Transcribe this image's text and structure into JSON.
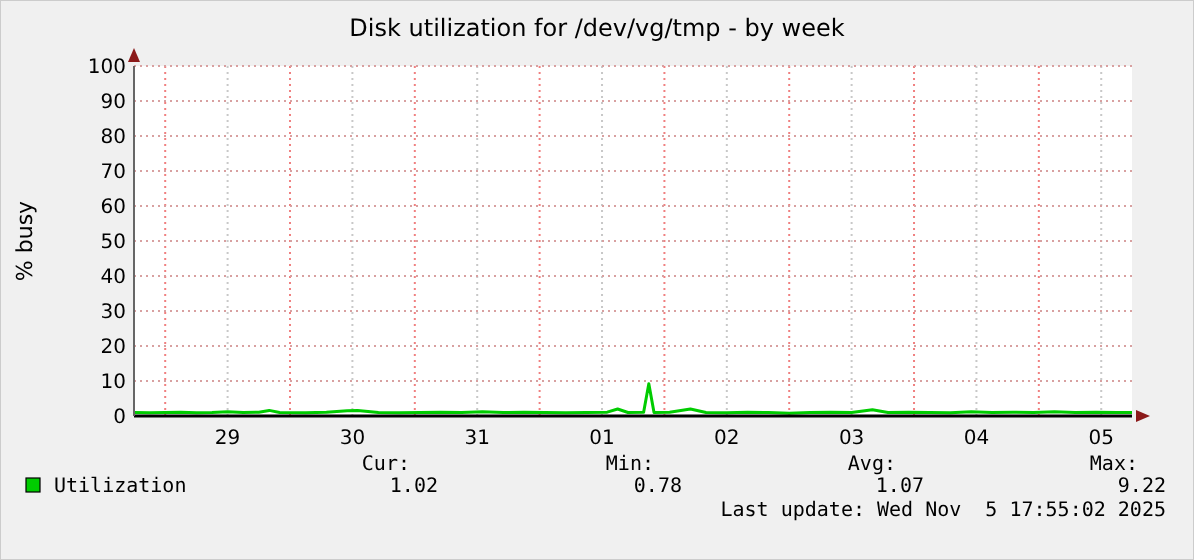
{
  "chart_data": {
    "type": "line",
    "title": "Disk utilization for /dev/vg/tmp - by week",
    "ylabel": "% busy",
    "x": [
      "2025-10-28T18:00",
      "2025-10-28T21:00",
      "2025-10-29T00:00",
      "2025-10-29T03:00",
      "2025-10-29T06:00",
      "2025-10-29T09:00",
      "2025-10-29T12:00",
      "2025-10-29T15:00",
      "2025-10-29T18:00",
      "2025-10-29T20:00",
      "2025-10-29T22:00",
      "2025-10-30T03:00",
      "2025-10-30T07:00",
      "2025-10-30T11:00",
      "2025-10-30T13:00",
      "2025-10-30T17:00",
      "2025-10-30T21:00",
      "2025-10-31T01:00",
      "2025-10-31T05:00",
      "2025-10-31T09:00",
      "2025-10-31T13:00",
      "2025-10-31T17:00",
      "2025-10-31T21:00",
      "2025-11-01T01:00",
      "2025-11-01T05:00",
      "2025-11-01T09:00",
      "2025-11-01T13:00",
      "2025-11-01T15:00",
      "2025-11-01T17:00",
      "2025-11-01T20:00",
      "2025-11-01T21:00",
      "2025-11-01T22:00",
      "2025-11-02T01:00",
      "2025-11-02T05:00",
      "2025-11-02T08:00",
      "2025-11-02T12:00",
      "2025-11-02T16:00",
      "2025-11-02T20:00",
      "2025-11-03T00:00",
      "2025-11-03T04:00",
      "2025-11-03T08:00",
      "2025-11-03T12:00",
      "2025-11-03T16:00",
      "2025-11-03T19:00",
      "2025-11-03T23:00",
      "2025-11-04T03:00",
      "2025-11-04T07:00",
      "2025-11-04T11:00",
      "2025-11-04T15:00",
      "2025-11-04T19:00",
      "2025-11-04T23:00",
      "2025-11-05T03:00",
      "2025-11-05T07:00",
      "2025-11-05T11:00",
      "2025-11-05T15:00",
      "2025-11-05T17:55"
    ],
    "series": [
      {
        "name": "Utilization",
        "color": "#00cc00",
        "values": [
          1.0,
          0.9,
          1.0,
          1.1,
          0.9,
          1.0,
          1.2,
          1.0,
          1.1,
          1.6,
          1.0,
          0.9,
          1.1,
          1.5,
          1.6,
          1.0,
          0.9,
          1.0,
          1.1,
          1.0,
          1.2,
          1.0,
          1.1,
          1.0,
          0.9,
          1.0,
          1.1,
          2.0,
          1.0,
          1.1,
          9.22,
          1.0,
          1.1,
          2.0,
          1.0,
          0.9,
          1.1,
          1.0,
          0.78,
          1.0,
          1.1,
          1.0,
          1.8,
          1.0,
          1.1,
          1.0,
          0.9,
          1.2,
          1.0,
          1.1,
          1.0,
          1.2,
          1.0,
          1.1,
          1.0,
          1.02
        ]
      }
    ],
    "xlim": [
      "2025-10-28T18:00",
      "2025-11-05T17:55"
    ],
    "xticks": [
      {
        "value": "2025-10-29T00:00",
        "label": null
      },
      {
        "value": "2025-10-29T12:00",
        "label": "29"
      },
      {
        "value": "2025-10-30T00:00",
        "label": null
      },
      {
        "value": "2025-10-30T12:00",
        "label": "30"
      },
      {
        "value": "2025-10-31T00:00",
        "label": null
      },
      {
        "value": "2025-10-31T12:00",
        "label": "31"
      },
      {
        "value": "2025-11-01T00:00",
        "label": null
      },
      {
        "value": "2025-11-01T12:00",
        "label": "01"
      },
      {
        "value": "2025-11-02T00:00",
        "label": null
      },
      {
        "value": "2025-11-02T12:00",
        "label": "02"
      },
      {
        "value": "2025-11-03T00:00",
        "label": null
      },
      {
        "value": "2025-11-03T12:00",
        "label": "03"
      },
      {
        "value": "2025-11-04T00:00",
        "label": null
      },
      {
        "value": "2025-11-04T12:00",
        "label": "04"
      },
      {
        "value": "2025-11-05T00:00",
        "label": null
      },
      {
        "value": "2025-11-05T12:00",
        "label": "05"
      }
    ],
    "ylim": [
      0,
      100
    ],
    "yticks": [
      0,
      10,
      20,
      30,
      40,
      50,
      60,
      70,
      80,
      90,
      100
    ],
    "grid": true,
    "legend": "bottom left",
    "marker": "none",
    "line_style": "solid",
    "annotations": [
      "Cur:",
      "Min:",
      "Avg:",
      "Max:",
      "1.02",
      "0.78",
      "1.07",
      "9.22",
      "Last update: Wed Nov  5 17:55:02 2025"
    ]
  }
}
